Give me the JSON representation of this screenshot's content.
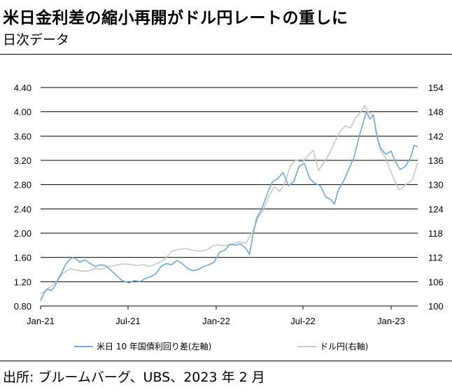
{
  "header": {
    "title": "米日金利差の縮小再開がドル円レートの重しに",
    "subtitle": "日次データ"
  },
  "footer": {
    "source": "出所: ブルームバーグ、UBS、2023 年 2 月"
  },
  "colors": {
    "yield_spread": "#6fa8dc",
    "usdjpy": "#c8c8c8",
    "grid": "#000000"
  },
  "chart_data": {
    "type": "line",
    "x_ticks": [
      "Jan-21",
      "Jul-21",
      "Jan-22",
      "Jul-22",
      "Jan-23"
    ],
    "x_range": [
      2021.0,
      2023.13
    ],
    "y_left": {
      "ticks": [
        "4.40",
        "4.00",
        "3.60",
        "3.20",
        "2.80",
        "2.40",
        "2.00",
        "1.60",
        "1.20",
        "0.80"
      ],
      "range": [
        0.8,
        4.4
      ]
    },
    "y_right": {
      "ticks": [
        "154",
        "148",
        "142",
        "136",
        "130",
        "124",
        "118",
        "112",
        "106",
        "100"
      ],
      "range": [
        100,
        154
      ]
    },
    "grid": true,
    "legend_position": "bottom",
    "series": [
      {
        "name": "米日 10 年国債利回り差(左軸)",
        "axis": "left",
        "points": [
          [
            2021.0,
            0.88
          ],
          [
            2021.02,
            1.02
          ],
          [
            2021.04,
            1.08
          ],
          [
            2021.06,
            1.05
          ],
          [
            2021.08,
            1.12
          ],
          [
            2021.1,
            1.25
          ],
          [
            2021.12,
            1.35
          ],
          [
            2021.14,
            1.48
          ],
          [
            2021.16,
            1.55
          ],
          [
            2021.18,
            1.6
          ],
          [
            2021.2,
            1.58
          ],
          [
            2021.22,
            1.52
          ],
          [
            2021.25,
            1.56
          ],
          [
            2021.28,
            1.5
          ],
          [
            2021.31,
            1.45
          ],
          [
            2021.34,
            1.48
          ],
          [
            2021.37,
            1.46
          ],
          [
            2021.4,
            1.38
          ],
          [
            2021.43,
            1.3
          ],
          [
            2021.46,
            1.22
          ],
          [
            2021.5,
            1.18
          ],
          [
            2021.53,
            1.22
          ],
          [
            2021.56,
            1.2
          ],
          [
            2021.59,
            1.25
          ],
          [
            2021.62,
            1.28
          ],
          [
            2021.65,
            1.33
          ],
          [
            2021.68,
            1.45
          ],
          [
            2021.71,
            1.5
          ],
          [
            2021.74,
            1.48
          ],
          [
            2021.77,
            1.55
          ],
          [
            2021.8,
            1.5
          ],
          [
            2021.83,
            1.42
          ],
          [
            2021.86,
            1.38
          ],
          [
            2021.89,
            1.4
          ],
          [
            2021.92,
            1.45
          ],
          [
            2021.95,
            1.48
          ],
          [
            2021.98,
            1.52
          ],
          [
            2022.01,
            1.68
          ],
          [
            2022.04,
            1.72
          ],
          [
            2022.07,
            1.82
          ],
          [
            2022.1,
            1.8
          ],
          [
            2022.13,
            1.82
          ],
          [
            2022.16,
            1.75
          ],
          [
            2022.18,
            1.65
          ],
          [
            2022.2,
            1.98
          ],
          [
            2022.22,
            2.25
          ],
          [
            2022.25,
            2.4
          ],
          [
            2022.28,
            2.65
          ],
          [
            2022.31,
            2.85
          ],
          [
            2022.34,
            2.9
          ],
          [
            2022.37,
            3.0
          ],
          [
            2022.4,
            2.78
          ],
          [
            2022.43,
            2.85
          ],
          [
            2022.46,
            3.1
          ],
          [
            2022.49,
            3.15
          ],
          [
            2022.52,
            2.9
          ],
          [
            2022.55,
            2.82
          ],
          [
            2022.58,
            2.78
          ],
          [
            2022.61,
            2.6
          ],
          [
            2022.64,
            2.55
          ],
          [
            2022.66,
            2.48
          ],
          [
            2022.68,
            2.7
          ],
          [
            2022.71,
            2.85
          ],
          [
            2022.74,
            3.05
          ],
          [
            2022.77,
            3.25
          ],
          [
            2022.8,
            3.6
          ],
          [
            2022.82,
            3.8
          ],
          [
            2022.84,
            4.0
          ],
          [
            2022.86,
            3.88
          ],
          [
            2022.88,
            3.95
          ],
          [
            2022.9,
            3.6
          ],
          [
            2022.92,
            3.4
          ],
          [
            2022.95,
            3.3
          ],
          [
            2022.98,
            3.35
          ],
          [
            2023.0,
            3.2
          ],
          [
            2023.03,
            3.05
          ],
          [
            2023.06,
            3.1
          ],
          [
            2023.09,
            3.25
          ],
          [
            2023.11,
            3.45
          ],
          [
            2023.13,
            3.42
          ]
        ]
      },
      {
        "name": "ドル円(右軸)",
        "axis": "right",
        "points": [
          [
            2021.0,
            103.1
          ],
          [
            2021.02,
            103.5
          ],
          [
            2021.04,
            104.3
          ],
          [
            2021.06,
            104.8
          ],
          [
            2021.08,
            105.6
          ],
          [
            2021.1,
            106.5
          ],
          [
            2021.12,
            107.8
          ],
          [
            2021.14,
            108.5
          ],
          [
            2021.17,
            109.2
          ],
          [
            2021.2,
            108.9
          ],
          [
            2021.24,
            108.6
          ],
          [
            2021.28,
            108.8
          ],
          [
            2021.31,
            109.3
          ],
          [
            2021.34,
            109.0
          ],
          [
            2021.38,
            109.7
          ],
          [
            2021.42,
            110.0
          ],
          [
            2021.46,
            110.4
          ],
          [
            2021.5,
            110.3
          ],
          [
            2021.54,
            110.0
          ],
          [
            2021.58,
            110.2
          ],
          [
            2021.62,
            109.8
          ],
          [
            2021.66,
            110.5
          ],
          [
            2021.7,
            111.5
          ],
          [
            2021.74,
            113.5
          ],
          [
            2021.78,
            114.0
          ],
          [
            2021.82,
            114.2
          ],
          [
            2021.86,
            113.8
          ],
          [
            2021.9,
            113.5
          ],
          [
            2021.94,
            113.9
          ],
          [
            2021.97,
            114.8
          ],
          [
            2022.0,
            115.1
          ],
          [
            2022.04,
            114.9
          ],
          [
            2022.08,
            115.3
          ],
          [
            2022.12,
            115.8
          ],
          [
            2022.16,
            115.5
          ],
          [
            2022.2,
            118.5
          ],
          [
            2022.23,
            122.0
          ],
          [
            2022.26,
            123.8
          ],
          [
            2022.29,
            127.2
          ],
          [
            2022.32,
            129.5
          ],
          [
            2022.35,
            128.3
          ],
          [
            2022.38,
            130.5
          ],
          [
            2022.41,
            134.5
          ],
          [
            2022.44,
            136.0
          ],
          [
            2022.48,
            135.6
          ],
          [
            2022.51,
            137.2
          ],
          [
            2022.54,
            138.5
          ],
          [
            2022.57,
            133.5
          ],
          [
            2022.6,
            135.5
          ],
          [
            2022.63,
            137.5
          ],
          [
            2022.66,
            140.5
          ],
          [
            2022.69,
            143.0
          ],
          [
            2022.72,
            144.5
          ],
          [
            2022.75,
            144.0
          ],
          [
            2022.78,
            146.5
          ],
          [
            2022.81,
            148.0
          ],
          [
            2022.83,
            149.5
          ],
          [
            2022.85,
            148.0
          ],
          [
            2022.88,
            147.0
          ],
          [
            2022.9,
            141.5
          ],
          [
            2022.92,
            138.5
          ],
          [
            2022.95,
            136.5
          ],
          [
            2022.97,
            134.0
          ],
          [
            2023.0,
            131.0
          ],
          [
            2023.02,
            128.8
          ],
          [
            2023.04,
            129.0
          ],
          [
            2023.06,
            130.0
          ],
          [
            2023.08,
            130.5
          ],
          [
            2023.1,
            131.2
          ],
          [
            2023.12,
            134.0
          ],
          [
            2023.13,
            135.5
          ]
        ]
      }
    ]
  }
}
